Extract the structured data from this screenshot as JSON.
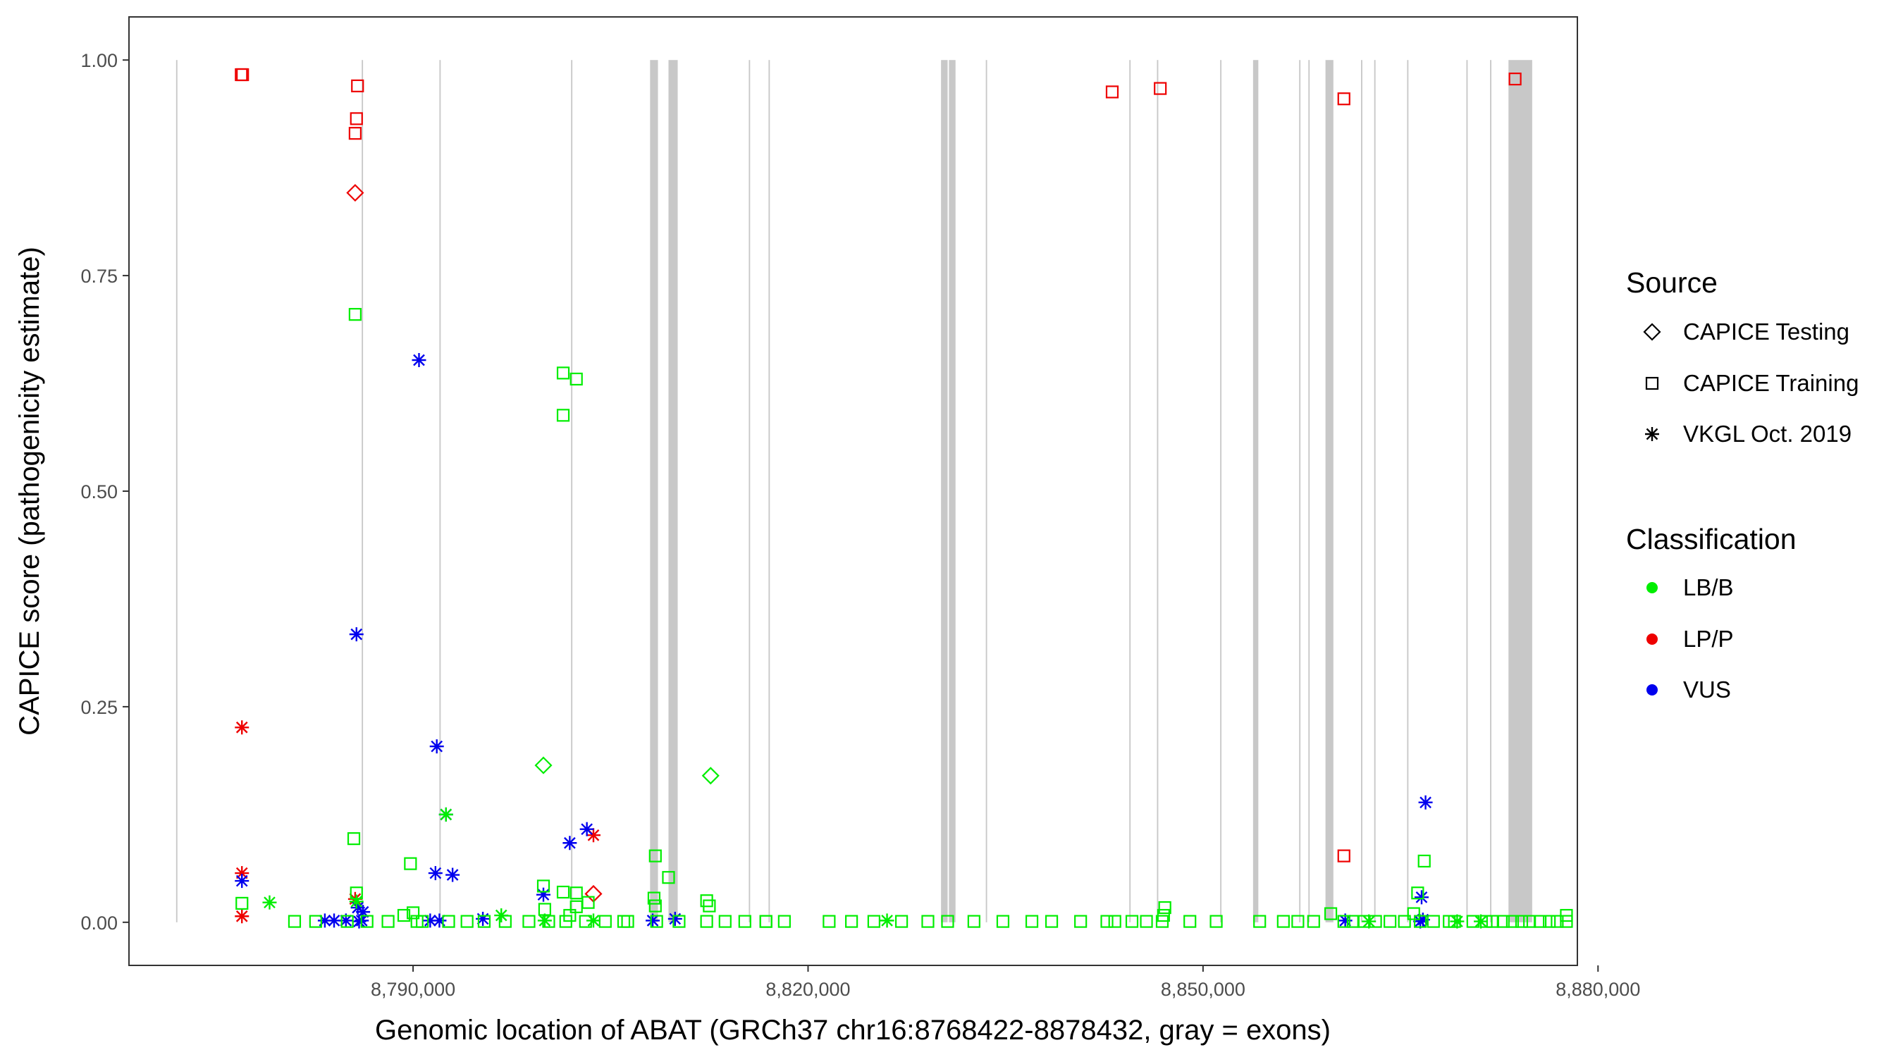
{
  "chart_data": {
    "type": "scatter",
    "title": "",
    "xlabel": "Genomic location of ABAT (GRCh37 chr16:8768422-8878432, gray = exons)",
    "ylabel": "CAPICE score (pathogenicity estimate)",
    "xlim": [
      8768422,
      8878432
    ],
    "ylim": [
      -0.05,
      1.05
    ],
    "x_ticks": [
      8790000,
      8820000,
      8850000,
      8880000
    ],
    "x_tick_labels": [
      "8,790,000",
      "8,820,000",
      "8,850,000",
      "8,880,000"
    ],
    "y_ticks": [
      0,
      0.25,
      0.5,
      0.75,
      1.0
    ],
    "y_tick_labels": [
      "0.00",
      "0.25",
      "0.50",
      "0.75",
      "1.00"
    ],
    "grid": false,
    "exon_color": "#c8c8c8",
    "exons": [
      [
        8772000,
        8772100
      ],
      [
        8786100,
        8786200
      ],
      [
        8792000,
        8792100
      ],
      [
        8802000,
        8802100
      ],
      [
        8808000,
        8808600
      ],
      [
        8809400,
        8810100
      ],
      [
        8815500,
        8815600
      ],
      [
        8817000,
        8817100
      ],
      [
        8830100,
        8830600
      ],
      [
        8830700,
        8831200
      ],
      [
        8833500,
        8833600
      ],
      [
        8844400,
        8844500
      ],
      [
        8846500,
        8846600
      ],
      [
        8851300,
        8851400
      ],
      [
        8853800,
        8854200
      ],
      [
        8857300,
        8857400
      ],
      [
        8858000,
        8858100
      ],
      [
        8859300,
        8859900
      ],
      [
        8862000,
        8862100
      ],
      [
        8863000,
        8863100
      ],
      [
        8865500,
        8865600
      ],
      [
        8870000,
        8870100
      ],
      [
        8871800,
        8871900
      ],
      [
        8873200,
        8875000
      ]
    ],
    "legend": {
      "position": "right",
      "source_title": "Source",
      "source_entries": [
        {
          "label": "CAPICE Testing",
          "shape": "diamond"
        },
        {
          "label": "CAPICE Training",
          "shape": "square"
        },
        {
          "label": "VKGL Oct. 2019",
          "shape": "asterisk"
        }
      ],
      "class_title": "Classification",
      "class_entries": [
        {
          "label": "LB/B",
          "color": "#00ee00"
        },
        {
          "label": "LP/P",
          "color": "#ee0000"
        },
        {
          "label": "VUS",
          "color": "#0000ee"
        }
      ]
    },
    "series": [
      {
        "source": "CAPICE Training",
        "classification": "LP/P",
        "points": [
          [
            8776950,
            0.983
          ],
          [
            8777050,
            0.983
          ],
          [
            8785780,
            0.97
          ],
          [
            8785700,
            0.932
          ],
          [
            8785600,
            0.915
          ],
          [
            8843100,
            0.963
          ],
          [
            8846750,
            0.967
          ],
          [
            8860700,
            0.955
          ],
          [
            8873700,
            0.978
          ],
          [
            8860700,
            0.077
          ]
        ]
      },
      {
        "source": "CAPICE Testing",
        "classification": "LP/P",
        "points": [
          [
            8785600,
            0.846
          ],
          [
            8803700,
            0.033
          ]
        ]
      },
      {
        "source": "VKGL Oct. 2019",
        "classification": "LP/P",
        "points": [
          [
            8777000,
            0.226
          ],
          [
            8777000,
            0.057
          ],
          [
            8777000,
            0.007
          ],
          [
            8785600,
            0.027
          ],
          [
            8803700,
            0.101
          ]
        ]
      },
      {
        "source": "VKGL Oct. 2019",
        "classification": "VUS",
        "points": [
          [
            8790450,
            0.652
          ],
          [
            8785700,
            0.334
          ],
          [
            8791800,
            0.204
          ],
          [
            8792500,
            0.125
          ],
          [
            8803200,
            0.108
          ],
          [
            8801900,
            0.092
          ],
          [
            8777000,
            0.048
          ],
          [
            8791700,
            0.057
          ],
          [
            8793000,
            0.055
          ],
          [
            8799900,
            0.032
          ],
          [
            8785800,
            0.017
          ],
          [
            8786200,
            0.012
          ],
          [
            8866900,
            0.139
          ],
          [
            8866600,
            0.029
          ],
          [
            8866700,
            0.003
          ],
          [
            8866500,
            0.001
          ],
          [
            8809900,
            0.004
          ],
          [
            8795300,
            0.004
          ],
          [
            8783300,
            0.002
          ],
          [
            8784000,
            0.002
          ],
          [
            8784900,
            0.002
          ],
          [
            8786100,
            0.002
          ],
          [
            8791300,
            0.002
          ],
          [
            8792000,
            0.002
          ],
          [
            8808200,
            0.002
          ],
          [
            8860800,
            0.002
          ],
          [
            8785900,
            0.001
          ]
        ]
      },
      {
        "source": "VKGL Oct. 2019",
        "classification": "LB/B",
        "points": [
          [
            8779100,
            0.023
          ],
          [
            8796700,
            0.008
          ],
          [
            8826000,
            0.002
          ],
          [
            8862600,
            0.001
          ],
          [
            8869300,
            0.001
          ],
          [
            8871100,
            0.001
          ],
          [
            8792500,
            0.125
          ],
          [
            8785700,
            0.024
          ],
          [
            8803700,
            0.002
          ],
          [
            8800000,
            0.002
          ]
        ]
      },
      {
        "source": "CAPICE Testing",
        "classification": "LB/B",
        "points": [
          [
            8799900,
            0.182
          ],
          [
            8812600,
            0.17
          ]
        ]
      },
      {
        "source": "CAPICE Training",
        "classification": "LB/B",
        "points": [
          [
            8785600,
            0.705
          ],
          [
            8801400,
            0.637
          ],
          [
            8802400,
            0.63
          ],
          [
            8801400,
            0.588
          ],
          [
            8785500,
            0.097
          ],
          [
            8808400,
            0.077
          ],
          [
            8789800,
            0.068
          ],
          [
            8809400,
            0.052
          ],
          [
            8799900,
            0.042
          ],
          [
            8866800,
            0.071
          ],
          [
            8866300,
            0.034
          ],
          [
            8785700,
            0.034
          ],
          [
            8801400,
            0.035
          ],
          [
            8802400,
            0.034
          ],
          [
            8808300,
            0.028
          ],
          [
            8808400,
            0.019
          ],
          [
            8812300,
            0.025
          ],
          [
            8812500,
            0.019
          ],
          [
            8847100,
            0.017
          ],
          [
            8847000,
            0.008
          ],
          [
            8859700,
            0.01
          ],
          [
            8777000,
            0.022
          ],
          [
            8803300,
            0.023
          ],
          [
            8800000,
            0.015
          ],
          [
            8801900,
            0.008
          ],
          [
            8789300,
            0.008
          ],
          [
            8790000,
            0.011
          ],
          [
            8802400,
            0.018
          ],
          [
            8866000,
            0.01
          ],
          [
            8781000,
            0.001
          ],
          [
            8782600,
            0.001
          ],
          [
            8785000,
            0.001
          ],
          [
            8786500,
            0.001
          ],
          [
            8788100,
            0.001
          ],
          [
            8790700,
            0.001
          ],
          [
            8792700,
            0.001
          ],
          [
            8794100,
            0.001
          ],
          [
            8795400,
            0.001
          ],
          [
            8797000,
            0.001
          ],
          [
            8798800,
            0.001
          ],
          [
            8800300,
            0.001
          ],
          [
            8801600,
            0.001
          ],
          [
            8803100,
            0.001
          ],
          [
            8804600,
            0.001
          ],
          [
            8806300,
            0.001
          ],
          [
            8808500,
            0.001
          ],
          [
            8810200,
            0.001
          ],
          [
            8812300,
            0.001
          ],
          [
            8813700,
            0.001
          ],
          [
            8815200,
            0.001
          ],
          [
            8816800,
            0.001
          ],
          [
            8818200,
            0.001
          ],
          [
            8821600,
            0.001
          ],
          [
            8823300,
            0.001
          ],
          [
            8825000,
            0.001
          ],
          [
            8827100,
            0.001
          ],
          [
            8829100,
            0.001
          ],
          [
            8832600,
            0.001
          ],
          [
            8834800,
            0.001
          ],
          [
            8837000,
            0.001
          ],
          [
            8838500,
            0.001
          ],
          [
            8840700,
            0.001
          ],
          [
            8842700,
            0.001
          ],
          [
            8844600,
            0.001
          ],
          [
            8846900,
            0.001
          ],
          [
            8849000,
            0.001
          ],
          [
            8851000,
            0.001
          ],
          [
            8854300,
            0.001
          ],
          [
            8856100,
            0.001
          ],
          [
            8857200,
            0.001
          ],
          [
            8858400,
            0.001
          ],
          [
            8860700,
            0.001
          ],
          [
            8861400,
            0.001
          ],
          [
            8862200,
            0.001
          ],
          [
            8863100,
            0.001
          ],
          [
            8864200,
            0.001
          ],
          [
            8865300,
            0.001
          ],
          [
            8866500,
            0.001
          ],
          [
            8867500,
            0.001
          ],
          [
            8869100,
            0.001
          ],
          [
            8870500,
            0.001
          ],
          [
            8872000,
            0.001
          ],
          [
            8873500,
            0.001
          ],
          [
            8874800,
            0.001
          ],
          [
            8876300,
            0.001
          ],
          [
            8877600,
            0.008
          ],
          [
            8877600,
            0.001
          ],
          [
            8790300,
            0.001
          ],
          [
            8806000,
            0.001
          ],
          [
            8816800,
            0.001
          ],
          [
            8830600,
            0.001
          ],
          [
            8843300,
            0.001
          ],
          [
            8845700,
            0.001
          ],
          [
            8868700,
            0.001
          ],
          [
            8871500,
            0.001
          ],
          [
            8872800,
            0.001
          ],
          [
            8874200,
            0.001
          ],
          [
            8875600,
            0.001
          ],
          [
            8876900,
            0.001
          ]
        ]
      }
    ]
  }
}
